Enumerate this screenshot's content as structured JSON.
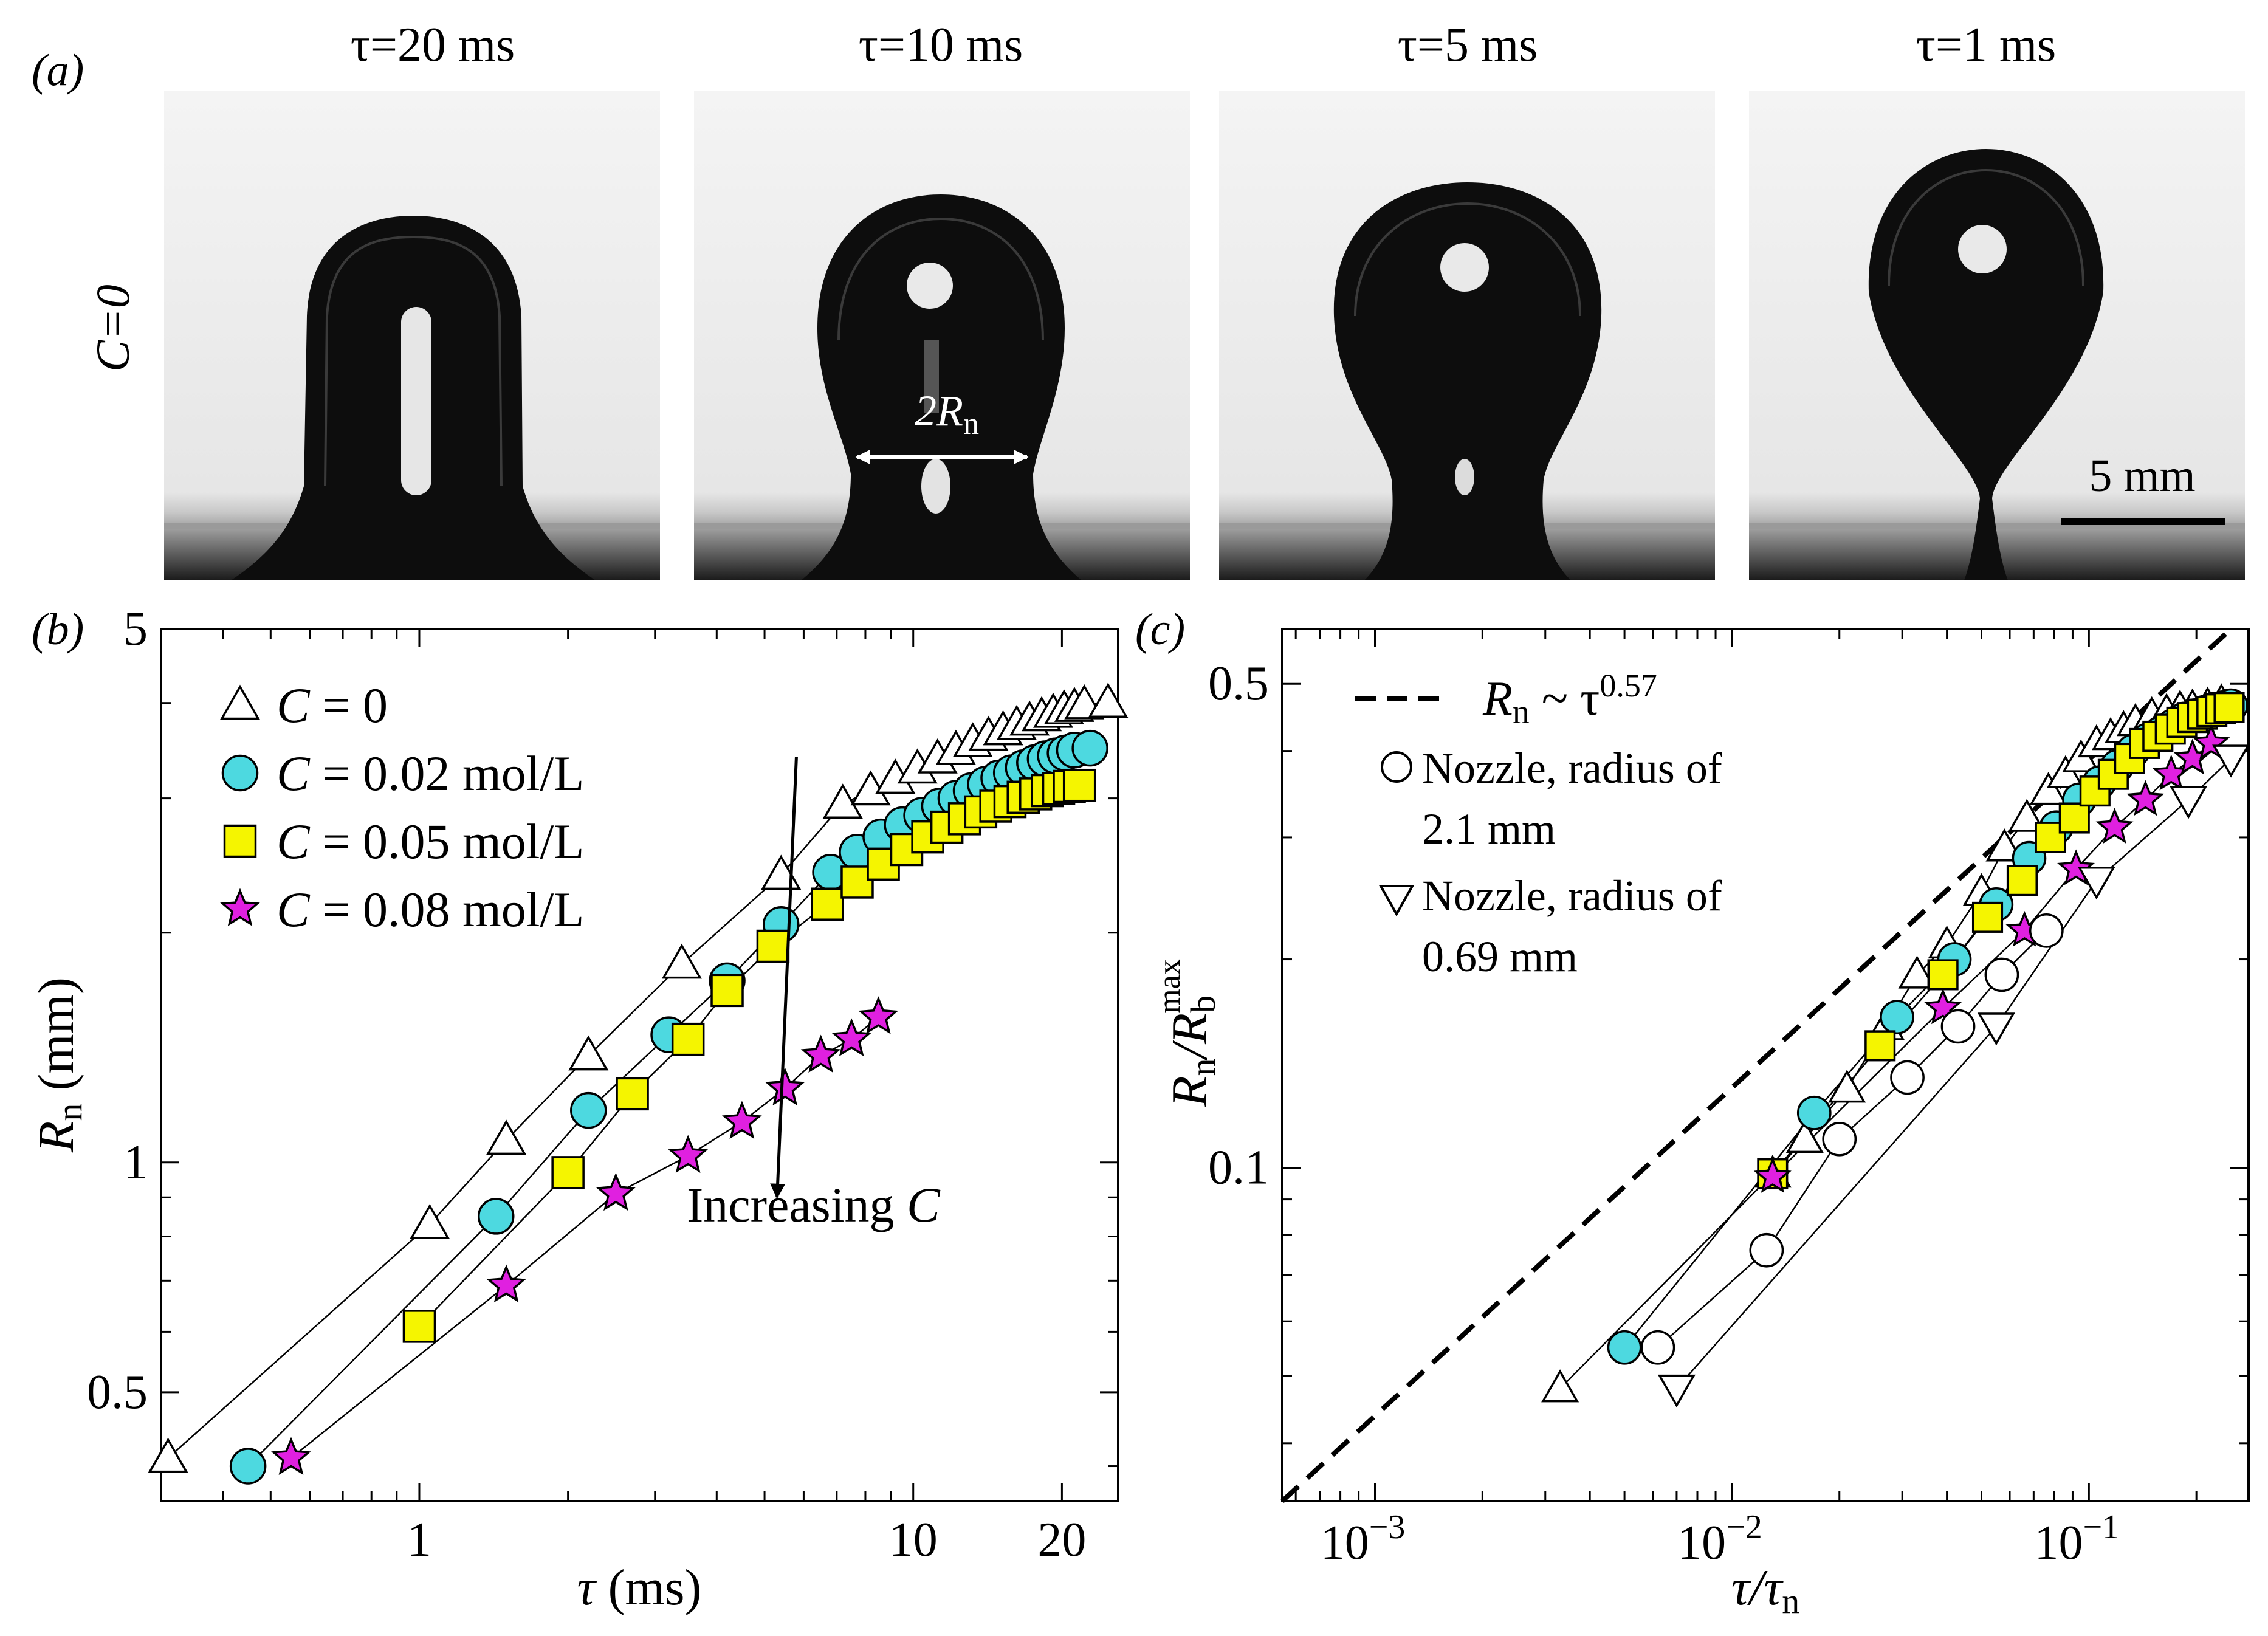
{
  "panel_a": {
    "label": "(a)",
    "row_label": "C=0",
    "frames": [
      {
        "tau_label": "τ=20 ms",
        "tau_ms": 20
      },
      {
        "tau_label": "τ=10 ms",
        "tau_ms": 10
      },
      {
        "tau_label": "τ=5 ms",
        "tau_ms": 5
      },
      {
        "tau_label": "τ=1 ms",
        "tau_ms": 1
      }
    ],
    "neck_annotation": "2R",
    "neck_annotation_sub": "n",
    "scale_bar_label": "5 mm"
  },
  "chart_data": [
    {
      "id": "b",
      "label": "(b)",
      "type": "scatter",
      "xscale": "log",
      "yscale": "log",
      "xlabel": "τ (ms)",
      "ylabel": "R",
      "ylabel_sub": "n",
      "ylabel_unit": " (mm)",
      "xlim": [
        0.3,
        26
      ],
      "ylim": [
        0.36,
        5
      ],
      "xticks": [
        {
          "v": 1,
          "label": "1"
        },
        {
          "v": 10,
          "label": "10"
        },
        {
          "v": 20,
          "label": "20"
        }
      ],
      "yticks": [
        {
          "v": 0.5,
          "label": "0.5"
        },
        {
          "v": 1,
          "label": "1"
        },
        {
          "v": 5,
          "label": "5"
        }
      ],
      "annotation": {
        "text": "Increasing ",
        "text_italic": "C",
        "arrow_from": [
          5.8,
          3.4
        ],
        "arrow_to": [
          5.3,
          0.9
        ]
      },
      "series": [
        {
          "name": "C = 0",
          "legend_var": "C",
          "legend_rest": " = 0",
          "marker": "triangle",
          "fill": "#ffffff",
          "x": [
            0.31,
            1.05,
            1.5,
            2.2,
            3.4,
            5.4,
            7.2,
            8.2,
            9.2,
            10.2,
            11.2,
            12.2,
            13.2,
            14.2,
            15.2,
            16.2,
            17.2,
            18.2,
            19.2,
            20.2,
            21.2,
            22.2,
            24.8
          ],
          "y": [
            0.41,
            0.83,
            1.07,
            1.38,
            1.82,
            2.38,
            2.95,
            3.07,
            3.18,
            3.28,
            3.38,
            3.47,
            3.55,
            3.62,
            3.68,
            3.74,
            3.79,
            3.84,
            3.88,
            3.92,
            3.95,
            3.98,
            4.0
          ]
        },
        {
          "name": "C = 0.02 mol/L",
          "legend_var": "C",
          "legend_rest": " = 0.02 mol/L",
          "marker": "circle",
          "fill": "#4dd9e0",
          "x": [
            0.45,
            1.43,
            2.2,
            3.2,
            4.2,
            5.4,
            6.8,
            7.7,
            8.6,
            9.5,
            10.4,
            11.3,
            12.2,
            13.1,
            14.0,
            14.9,
            15.8,
            16.7,
            17.6,
            18.5,
            19.4,
            20.3,
            21.2,
            22.8
          ],
          "y": [
            0.4,
            0.85,
            1.17,
            1.47,
            1.73,
            2.05,
            2.4,
            2.55,
            2.67,
            2.77,
            2.85,
            2.93,
            3.0,
            3.07,
            3.13,
            3.19,
            3.24,
            3.29,
            3.34,
            3.38,
            3.41,
            3.44,
            3.47,
            3.49
          ]
        },
        {
          "name": "C = 0.05 mol/L",
          "legend_var": "C",
          "legend_rest": " = 0.05 mol/L",
          "marker": "square",
          "fill": "#f5f500",
          "x": [
            1.0,
            2.0,
            2.7,
            3.5,
            4.2,
            5.2,
            6.7,
            7.7,
            8.7,
            9.7,
            10.7,
            11.7,
            12.7,
            13.7,
            14.7,
            15.7,
            16.7,
            17.7,
            18.7,
            19.7,
            20.7,
            21.7
          ],
          "y": [
            0.61,
            0.97,
            1.23,
            1.45,
            1.68,
            1.92,
            2.18,
            2.33,
            2.46,
            2.57,
            2.67,
            2.75,
            2.82,
            2.88,
            2.93,
            2.97,
            3.01,
            3.04,
            3.07,
            3.09,
            3.11,
            3.12
          ]
        },
        {
          "name": "C = 0.08 mol/L",
          "legend_var": "C",
          "legend_rest": " = 0.08 mol/L",
          "marker": "star",
          "fill": "#e020e0",
          "x": [
            0.55,
            1.5,
            2.5,
            3.5,
            4.5,
            5.5,
            6.5,
            7.5,
            8.5
          ],
          "y": [
            0.41,
            0.69,
            0.91,
            1.02,
            1.13,
            1.25,
            1.38,
            1.45,
            1.55
          ]
        }
      ]
    },
    {
      "id": "c",
      "label": "(c)",
      "type": "scatter",
      "xscale": "log",
      "yscale": "log",
      "xlabel": "τ/τ",
      "xlabel_sub": "n",
      "ylabel": "R",
      "ylabel_sub": "n",
      "ylabel_mid": "/R",
      "ylabel_sub2": "b",
      "ylabel_sup": "max",
      "xlim": [
        0.00055,
        0.28
      ],
      "ylim": [
        0.033,
        0.6
      ],
      "xticks": [
        {
          "v": 0.001,
          "base": "10",
          "exp": "−3"
        },
        {
          "v": 0.01,
          "base": "10",
          "exp": "−2"
        },
        {
          "v": 0.1,
          "base": "10",
          "exp": "−1"
        }
      ],
      "yticks": [
        {
          "v": 0.1,
          "label": "0.1"
        },
        {
          "v": 0.5,
          "label": "0.5"
        }
      ],
      "fit_line": {
        "label": "R",
        "label_sub": "n",
        "label_rest": " ~ τ",
        "label_sup": "0.57",
        "exponent": 0.57,
        "x": [
          0.00055,
          0.25
        ],
        "y": [
          0.033,
          0.6
        ]
      },
      "legend": [
        {
          "marker": "dash",
          "text": ""
        },
        {
          "marker": "circle",
          "text": "Nozzle, radius of",
          "text2": "2.1 mm"
        },
        {
          "marker": "down-triangle",
          "text": "Nozzle, radius of",
          "text2": "0.69 mm"
        }
      ],
      "series": [
        {
          "name": "C = 0",
          "marker": "triangle",
          "fill": "#ffffff",
          "x": [
            0.0033,
            0.013,
            0.016,
            0.021,
            0.027,
            0.033,
            0.04,
            0.05,
            0.058,
            0.067,
            0.077,
            0.086,
            0.095,
            0.105,
            0.115,
            0.125,
            0.135,
            0.15,
            0.165,
            0.18,
            0.195,
            0.215,
            0.235
          ],
          "y": [
            0.048,
            0.098,
            0.11,
            0.13,
            0.16,
            0.19,
            0.21,
            0.25,
            0.29,
            0.32,
            0.35,
            0.37,
            0.39,
            0.41,
            0.42,
            0.43,
            0.44,
            0.45,
            0.455,
            0.46,
            0.462,
            0.465,
            0.47
          ]
        },
        {
          "name": "C = 0.02 mol/L",
          "marker": "circle",
          "fill": "#4dd9e0",
          "x": [
            0.005,
            0.017,
            0.029,
            0.042,
            0.055,
            0.068,
            0.081,
            0.094,
            0.107,
            0.12,
            0.133,
            0.146,
            0.159,
            0.172,
            0.185,
            0.198,
            0.211,
            0.224,
            0.237,
            0.25
          ],
          "y": [
            0.055,
            0.12,
            0.165,
            0.2,
            0.24,
            0.28,
            0.31,
            0.34,
            0.36,
            0.38,
            0.4,
            0.415,
            0.425,
            0.435,
            0.445,
            0.45,
            0.455,
            0.46,
            0.462,
            0.465
          ]
        },
        {
          "name": "C = 0.05 mol/L",
          "marker": "square",
          "fill": "#f5f500",
          "x": [
            0.013,
            0.026,
            0.039,
            0.052,
            0.065,
            0.078,
            0.091,
            0.104,
            0.117,
            0.13,
            0.143,
            0.156,
            0.169,
            0.182,
            0.195,
            0.208,
            0.221,
            0.234,
            0.247
          ],
          "y": [
            0.098,
            0.15,
            0.19,
            0.23,
            0.26,
            0.3,
            0.32,
            0.35,
            0.37,
            0.39,
            0.41,
            0.42,
            0.43,
            0.44,
            0.447,
            0.452,
            0.456,
            0.46,
            0.462
          ]
        },
        {
          "name": "C = 0.08 mol/L",
          "marker": "star",
          "fill": "#e020e0",
          "x": [
            0.013,
            0.039,
            0.066,
            0.092,
            0.118,
            0.144,
            0.17,
            0.195,
            0.22
          ],
          "y": [
            0.097,
            0.17,
            0.22,
            0.27,
            0.31,
            0.34,
            0.37,
            0.39,
            0.41
          ]
        },
        {
          "name": "Nozzle, radius of 2.1 mm",
          "marker": "circle",
          "fill": "#ffffff",
          "x": [
            0.0062,
            0.0125,
            0.02,
            0.031,
            0.043,
            0.057,
            0.076
          ],
          "y": [
            0.055,
            0.076,
            0.11,
            0.135,
            0.16,
            0.19,
            0.22
          ]
        },
        {
          "name": "Nozzle, radius of 0.69 mm",
          "marker": "down-triangle",
          "fill": "#ffffff",
          "x": [
            0.007,
            0.055,
            0.105,
            0.19,
            0.25
          ],
          "y": [
            0.048,
            0.16,
            0.26,
            0.34,
            0.39
          ]
        }
      ]
    }
  ],
  "colors": {
    "cyan": "#4dd9e0",
    "yellow": "#f5f500",
    "magenta": "#e020e0",
    "drop": "#0d0d0d"
  }
}
